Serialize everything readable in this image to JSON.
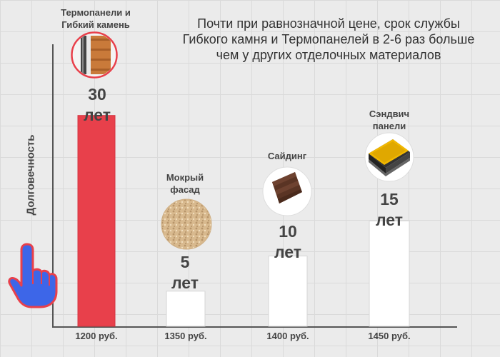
{
  "headline": "Почти при равнозначной цене, срок службы Гибкого камня и Термопанелей в 2-6 раз больше чем у других отделочных материалов",
  "chart_data": {
    "type": "bar",
    "ylabel": "Долговечность",
    "xlabel": "",
    "categories": [
      "1200 руб.",
      "1350 руб.",
      "1400 руб.",
      "1450 руб."
    ],
    "series_labels": [
      [
        "Термопанели и",
        "Гибкий камень"
      ],
      [
        "Мокрый",
        "фасад"
      ],
      [
        "Сайдинг"
      ],
      [
        "Сэндвич",
        "панели"
      ]
    ],
    "values": [
      30,
      5,
      10,
      15
    ],
    "value_labels": [
      [
        "30",
        "лет"
      ],
      [
        "5",
        "лет"
      ],
      [
        "10",
        "лет"
      ],
      [
        "15",
        "лет"
      ]
    ],
    "ylim": [
      0,
      32
    ],
    "grid": false,
    "colors": [
      "#e8404b",
      "#ffffff",
      "#ffffff",
      "#ffffff"
    ],
    "icons": [
      "thermopanel-sample-icon",
      "wet-facade-plaster-icon",
      "siding-panel-icon",
      "sandwich-panel-icon"
    ]
  },
  "pointer_icon": "pointing-hand-icon",
  "colors": {
    "accent": "#e8404b",
    "hand": "#3d66e8",
    "hand_outline": "#e8404b"
  }
}
